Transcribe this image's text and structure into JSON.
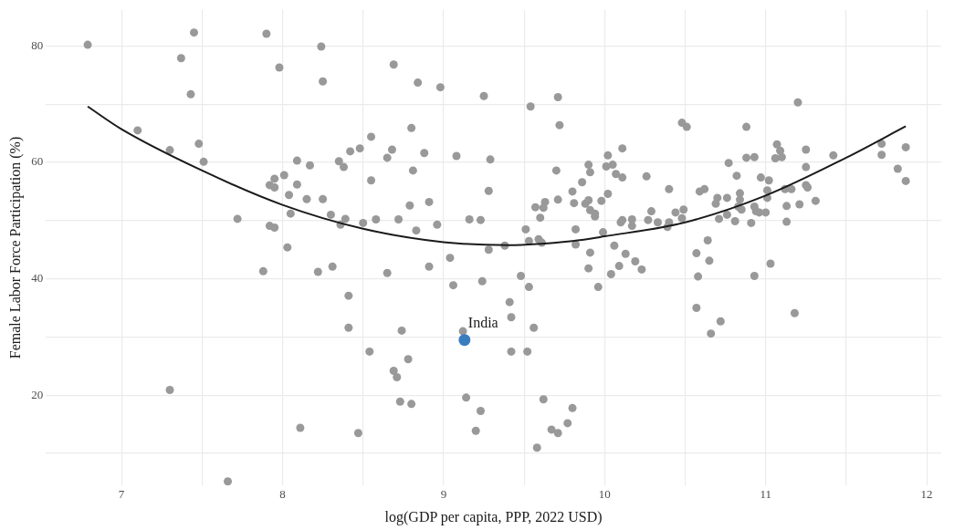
{
  "chart_data": {
    "type": "scatter",
    "xlabel": "log(GDP per capita, PPP, 2022 USD)",
    "ylabel": "Female Labor Force Participation (%)",
    "xlim": [
      6.53,
      12.09
    ],
    "ylim": [
      4.5,
      86.2
    ],
    "xticks": [
      7,
      {
        "value": 7.5,
        "label": null
      },
      8,
      {
        "value": 8.5,
        "label": null
      },
      9,
      {
        "value": 9.5,
        "label": null
      },
      10,
      {
        "value": 10.5,
        "label": null
      },
      11,
      {
        "value": 11.5,
        "label": null
      },
      12
    ],
    "yticks": [
      {
        "value": 10,
        "label": null
      },
      20,
      {
        "value": 30,
        "label": null
      },
      40,
      {
        "value": 50,
        "label": null
      },
      60,
      {
        "value": 70,
        "label": null
      },
      80
    ],
    "grid": true,
    "legend": false,
    "marker": "circle",
    "series": [
      {
        "color": "#999999",
        "x": [
          6.79,
          7.45,
          7.37,
          7.43,
          7.9,
          7.98,
          8.24,
          8.25,
          7.1,
          7.3,
          7.48,
          7.51,
          8.09,
          8.17,
          8.35,
          8.38,
          8.42,
          8.01,
          7.95,
          7.92,
          7.95,
          8.09,
          8.04,
          8.15,
          8.25,
          8.05,
          8.3,
          8.39,
          8.36,
          7.72,
          7.92,
          7.95,
          8.03,
          7.88,
          8.22,
          8.31,
          8.41,
          8.41,
          7.3,
          8.11,
          7.66,
          8.69,
          8.84,
          8.98,
          9.25,
          9.71,
          9.54,
          9.72,
          8.8,
          8.55,
          8.48,
          8.68,
          8.65,
          8.88,
          9.08,
          9.29,
          8.81,
          8.55,
          8.79,
          8.91,
          9.28,
          9.7,
          9.8,
          9.71,
          9.86,
          9.9,
          9.91,
          10.02,
          10.05,
          10.01,
          10.07,
          10.11,
          10.11,
          10.26,
          10.02,
          9.98,
          9.81,
          9.88,
          9.9,
          9.91,
          9.94,
          9.94,
          9.57,
          9.63,
          9.62,
          9.6,
          8.5,
          8.58,
          8.72,
          8.83,
          8.96,
          9.16,
          9.23,
          9.51,
          9.82,
          9.99,
          10.1,
          10.11,
          10.17,
          10.17,
          10.27,
          9.53,
          9.59,
          9.61,
          9.38,
          9.28,
          9.82,
          10.06,
          9.04,
          9.91,
          10.13,
          10.19,
          10.23,
          10.09,
          10.04,
          9.9,
          8.65,
          8.91,
          9.48,
          9.06,
          9.24,
          9.53,
          9.96,
          9.41,
          9.42,
          9.56,
          8.74,
          9.12,
          8.54,
          8.78,
          9.42,
          9.52,
          8.69,
          8.71,
          8.73,
          8.8,
          9.14,
          9.23,
          9.2,
          9.62,
          9.8,
          9.77,
          9.67,
          9.71,
          9.58,
          8.47,
          10.48,
          10.51,
          10.88,
          11.2,
          11.07,
          11.09,
          11.06,
          11.1,
          10.93,
          10.88,
          10.77,
          11.25,
          11.25,
          11.42,
          11.72,
          11.72,
          11.87,
          11.82,
          11.87,
          10.82,
          10.97,
          11.02,
          11.25,
          11.26,
          11.01,
          11.12,
          11.16,
          11.31,
          11.01,
          10.84,
          10.84,
          11.13,
          11.21,
          10.7,
          10.69,
          10.76,
          10.59,
          10.62,
          10.4,
          10.83,
          10.85,
          10.93,
          10.94,
          10.96,
          11.0,
          10.49,
          10.44,
          10.48,
          10.29,
          10.33,
          10.4,
          10.39,
          10.71,
          10.76,
          10.81,
          10.91,
          11.13,
          10.64,
          10.57,
          10.65,
          10.58,
          10.93,
          11.03,
          10.57,
          10.72,
          10.66,
          11.18
        ],
        "values": [
          80.2,
          82.3,
          77.9,
          71.7,
          82.1,
          76.3,
          79.9,
          73.9,
          65.5,
          62.1,
          63.2,
          60.1,
          60.3,
          59.5,
          60.2,
          59.2,
          61.9,
          57.8,
          57.2,
          56.1,
          55.7,
          56.2,
          54.4,
          53.7,
          53.7,
          51.2,
          51.0,
          50.3,
          49.3,
          50.3,
          49.1,
          48.8,
          45.4,
          41.3,
          41.2,
          42.1,
          37.1,
          31.6,
          20.9,
          14.4,
          5.2,
          76.8,
          73.7,
          72.9,
          71.4,
          71.2,
          69.6,
          66.4,
          65.9,
          64.4,
          62.4,
          62.2,
          60.8,
          61.6,
          61.1,
          60.5,
          58.6,
          56.9,
          52.6,
          53.2,
          55.1,
          58.6,
          55.0,
          53.6,
          56.6,
          59.6,
          58.3,
          61.2,
          59.6,
          59.3,
          58.0,
          57.4,
          62.4,
          57.6,
          54.6,
          53.4,
          53.0,
          52.9,
          53.5,
          51.8,
          51.2,
          50.7,
          52.3,
          53.2,
          52.2,
          50.5,
          49.6,
          50.2,
          50.2,
          48.3,
          49.3,
          50.2,
          50.1,
          48.5,
          48.5,
          48.0,
          49.7,
          50.1,
          50.2,
          49.1,
          50.1,
          46.5,
          46.8,
          46.2,
          45.7,
          45.0,
          45.9,
          45.7,
          43.6,
          44.5,
          44.3,
          43.0,
          41.6,
          42.2,
          40.8,
          41.8,
          41.0,
          42.1,
          40.5,
          38.9,
          39.6,
          38.6,
          38.6,
          36.0,
          33.4,
          31.6,
          31.1,
          31.0,
          27.5,
          26.2,
          27.5,
          27.5,
          24.2,
          23.1,
          18.9,
          18.5,
          19.6,
          17.3,
          13.9,
          19.3,
          17.8,
          15.2,
          14.1,
          13.5,
          11.0,
          13.5,
          66.8,
          66.1,
          66.1,
          70.3,
          63.1,
          62.0,
          60.7,
          60.9,
          60.9,
          60.8,
          59.9,
          62.2,
          59.2,
          61.2,
          63.2,
          61.3,
          62.6,
          58.9,
          56.8,
          57.7,
          57.4,
          56.9,
          56.1,
          55.7,
          55.2,
          55.4,
          55.4,
          53.4,
          53.9,
          54.7,
          53.6,
          52.5,
          52.8,
          53.9,
          52.9,
          53.9,
          55.0,
          55.4,
          55.4,
          52.4,
          51.9,
          52.4,
          51.6,
          51.4,
          51.4,
          51.9,
          51.4,
          50.4,
          51.6,
          49.7,
          49.7,
          48.9,
          50.3,
          51.0,
          49.9,
          49.6,
          49.8,
          46.6,
          44.4,
          43.1,
          40.4,
          40.5,
          42.6,
          35.0,
          32.7,
          30.6,
          34.1
        ]
      },
      {
        "type": "scatter",
        "color": "#3a7dbf",
        "x": [
          9.13
        ],
        "values": [
          29.5
        ]
      },
      {
        "type": "line",
        "color": "#1a1a1a",
        "marker": "none",
        "x": [
          6.79,
          7.0,
          7.5,
          8.0,
          8.5,
          9.0,
          9.4,
          9.8,
          10.0,
          10.5,
          11.0,
          11.5,
          11.87
        ],
        "values": [
          69.6,
          65.7,
          58.6,
          52.7,
          48.6,
          46.3,
          45.8,
          46.5,
          47.3,
          49.7,
          54.3,
          60.8,
          66.2
        ]
      }
    ],
    "annotations": [
      {
        "text": "India",
        "x": 9.13,
        "y": 29.5
      }
    ]
  }
}
